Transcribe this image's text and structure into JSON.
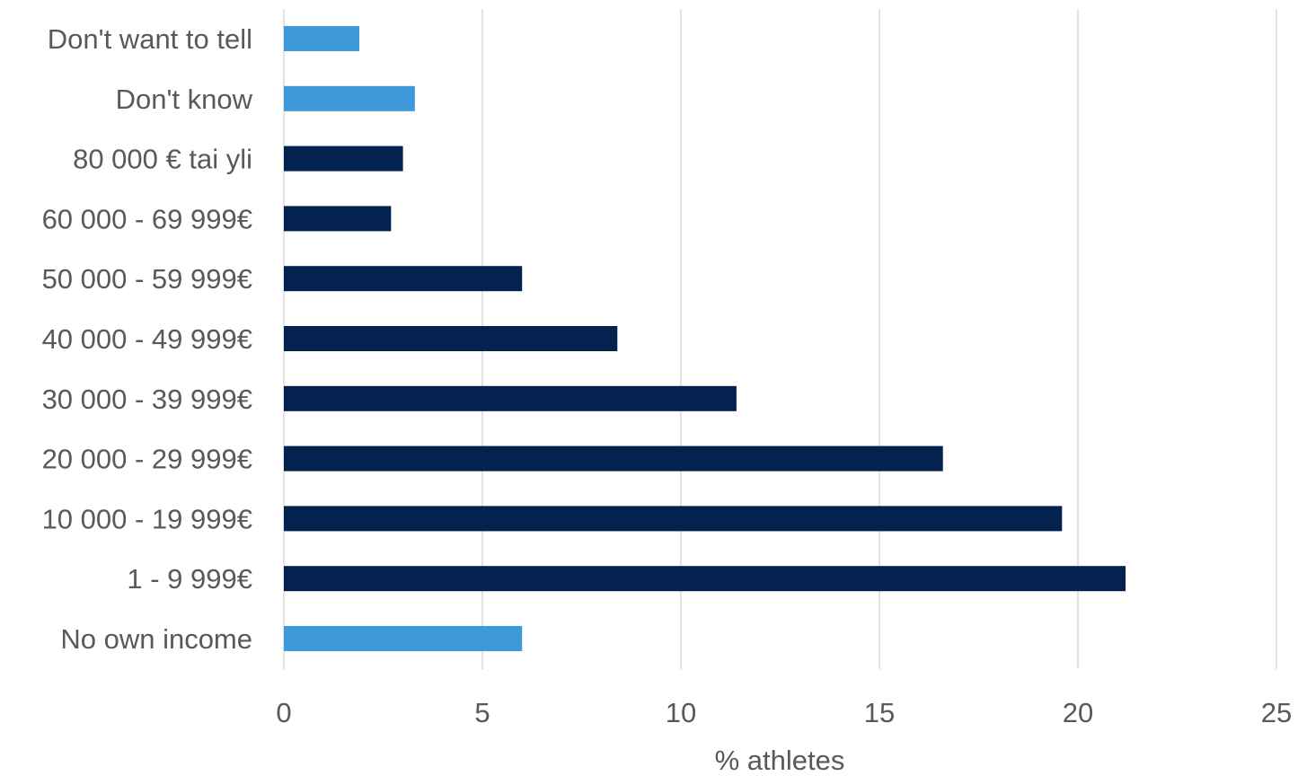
{
  "chart_data": {
    "type": "bar",
    "orientation": "horizontal",
    "categories": [
      "Don't want to tell",
      "Don't know",
      "80 000 € tai yli",
      "60 000 - 69 999€",
      "50 000 - 59 999€",
      "40 000 - 49 999€",
      "30 000 - 39 999€",
      "20 000 - 29 999€",
      "10 000 - 19 999€",
      "1 - 9 999€",
      "No own income"
    ],
    "values": [
      1.9,
      3.3,
      3.0,
      2.7,
      6.0,
      8.4,
      11.4,
      16.6,
      19.6,
      21.2,
      6.0
    ],
    "bar_colors": [
      "#3d99d9",
      "#3d99d9",
      "#03224f",
      "#03224f",
      "#03224f",
      "#03224f",
      "#03224f",
      "#03224f",
      "#03224f",
      "#03224f",
      "#3d99d9"
    ],
    "title": "",
    "xlabel": "% athletes",
    "ylabel": "",
    "xlim": [
      0,
      25
    ],
    "xticks": [
      0,
      5,
      10,
      15,
      20,
      25
    ],
    "grid": "vertical",
    "legend": "none"
  }
}
